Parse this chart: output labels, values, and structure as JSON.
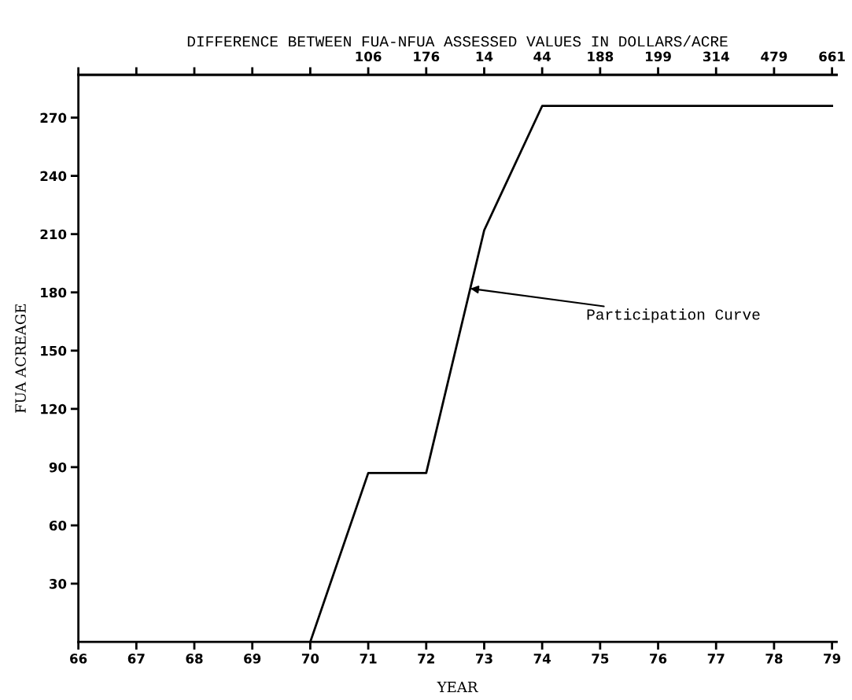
{
  "chart_data": {
    "type": "line",
    "x2label": "DIFFERENCE BETWEEN FUA-NFUA ASSESSED VALUES IN DOLLARS/ACRE",
    "xlabel": "YEAR",
    "ylabel": "FUA ACREAGE",
    "series": [
      {
        "color": "#000000",
        "x": [
          70,
          71,
          72,
          73,
          74,
          75,
          76,
          77,
          78,
          79
        ],
        "values": [
          0,
          87,
          87,
          212,
          276,
          276,
          276,
          276,
          276,
          276
        ]
      }
    ],
    "xlim": [
      66,
      79.08
    ],
    "xticks": [
      66,
      67,
      68,
      69,
      70,
      71,
      72,
      73,
      74,
      75,
      76,
      77,
      78,
      79
    ],
    "ylim": [
      0,
      292
    ],
    "yticks": [
      30,
      60,
      90,
      120,
      150,
      180,
      210,
      240,
      270
    ],
    "annotations": [
      {
        "text": "Participation Curve",
        "x": 72.76,
        "y": 182
      },
      {
        "text": "106",
        "x": 71
      },
      {
        "text": "176",
        "x": 72
      },
      {
        "text": "14",
        "x": 73
      },
      {
        "text": "44",
        "x": 74
      },
      {
        "text": "188",
        "x": 75
      },
      {
        "text": "199",
        "x": 76
      },
      {
        "text": "314",
        "x": 77
      },
      {
        "text": "479",
        "x": 78
      },
      {
        "text": "661",
        "x": 79
      }
    ],
    "grid": false,
    "legend": false,
    "marker": "none",
    "line_style": "solid"
  }
}
